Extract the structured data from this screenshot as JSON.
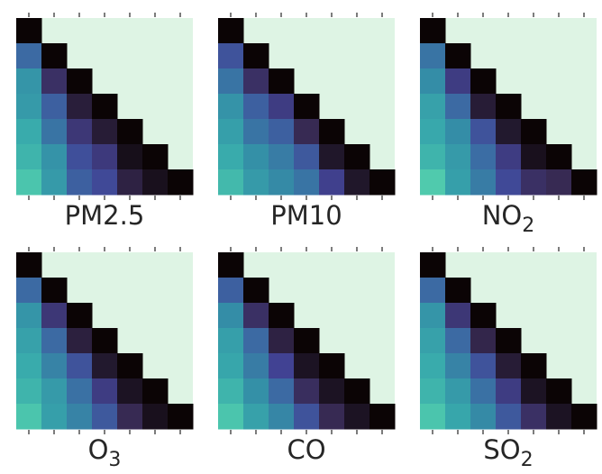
{
  "chart_data": [
    {
      "type": "heatmap",
      "title": "PM2.5",
      "title_base": "PM2.5",
      "title_sub": "",
      "size": 7,
      "values": [
        [
          1.0
        ],
        [
          0.55,
          1.0
        ],
        [
          0.42,
          0.75,
          1.0
        ],
        [
          0.4,
          0.58,
          0.84,
          1.0
        ],
        [
          0.33,
          0.52,
          0.72,
          0.85,
          1.0
        ],
        [
          0.3,
          0.43,
          0.63,
          0.71,
          0.93,
          1.0
        ],
        [
          0.24,
          0.4,
          0.58,
          0.65,
          0.82,
          0.92,
          1.0
        ]
      ]
    },
    {
      "type": "heatmap",
      "title": "PM10",
      "title_base": "PM10",
      "title_sub": "",
      "size": 7,
      "values": [
        [
          1.0
        ],
        [
          0.62,
          1.0
        ],
        [
          0.52,
          0.75,
          1.0
        ],
        [
          0.43,
          0.58,
          0.7,
          1.0
        ],
        [
          0.38,
          0.52,
          0.58,
          0.78,
          1.0
        ],
        [
          0.33,
          0.44,
          0.5,
          0.6,
          0.88,
          1.0
        ],
        [
          0.28,
          0.4,
          0.46,
          0.52,
          0.68,
          0.88,
          1.0
        ]
      ]
    },
    {
      "type": "heatmap",
      "title": "NO2",
      "title_base": "NO",
      "title_sub": "2",
      "size": 7,
      "values": [
        [
          1.0
        ],
        [
          0.52,
          1.0
        ],
        [
          0.45,
          0.7,
          1.0
        ],
        [
          0.37,
          0.55,
          0.85,
          1.0
        ],
        [
          0.34,
          0.45,
          0.62,
          0.87,
          1.0
        ],
        [
          0.3,
          0.4,
          0.54,
          0.7,
          0.92,
          1.0
        ],
        [
          0.22,
          0.38,
          0.5,
          0.65,
          0.75,
          0.78,
          1.0
        ]
      ]
    },
    {
      "type": "heatmap",
      "title": "O3",
      "title_base": "O",
      "title_sub": "3",
      "size": 7,
      "values": [
        [
          1.0
        ],
        [
          0.55,
          1.0
        ],
        [
          0.42,
          0.72,
          1.0
        ],
        [
          0.37,
          0.55,
          0.83,
          1.0
        ],
        [
          0.33,
          0.48,
          0.62,
          0.87,
          1.0
        ],
        [
          0.3,
          0.4,
          0.53,
          0.7,
          0.9,
          1.0
        ],
        [
          0.24,
          0.38,
          0.48,
          0.6,
          0.78,
          0.92,
          1.0
        ]
      ]
    },
    {
      "type": "heatmap",
      "title": "CO",
      "title_base": "CO",
      "title_sub": "",
      "size": 7,
      "values": [
        [
          1.0
        ],
        [
          0.58,
          1.0
        ],
        [
          0.45,
          0.75,
          1.0
        ],
        [
          0.38,
          0.55,
          0.82,
          1.0
        ],
        [
          0.35,
          0.5,
          0.67,
          0.9,
          1.0
        ],
        [
          0.3,
          0.44,
          0.55,
          0.76,
          0.9,
          1.0
        ],
        [
          0.24,
          0.37,
          0.47,
          0.62,
          0.78,
          0.9,
          1.0
        ]
      ]
    },
    {
      "type": "heatmap",
      "title": "SO2",
      "title_base": "SO",
      "title_sub": "2",
      "size": 7,
      "values": [
        [
          1.0
        ],
        [
          0.55,
          1.0
        ],
        [
          0.42,
          0.72,
          1.0
        ],
        [
          0.37,
          0.55,
          0.8,
          1.0
        ],
        [
          0.33,
          0.48,
          0.62,
          0.85,
          1.0
        ],
        [
          0.3,
          0.4,
          0.53,
          0.7,
          0.9,
          1.0
        ],
        [
          0.24,
          0.35,
          0.46,
          0.6,
          0.75,
          0.9,
          1.0
        ]
      ]
    }
  ],
  "style": {
    "upper_fill": "#def4e4",
    "tick_color": "#262626",
    "colormap": [
      "#def4e4",
      "#8adcb2",
      "#4fcaad",
      "#38aaac",
      "#348fa7",
      "#3c68a3",
      "#414395",
      "#382a54",
      "#1e1526",
      "#0b0405"
    ],
    "grid": false
  }
}
